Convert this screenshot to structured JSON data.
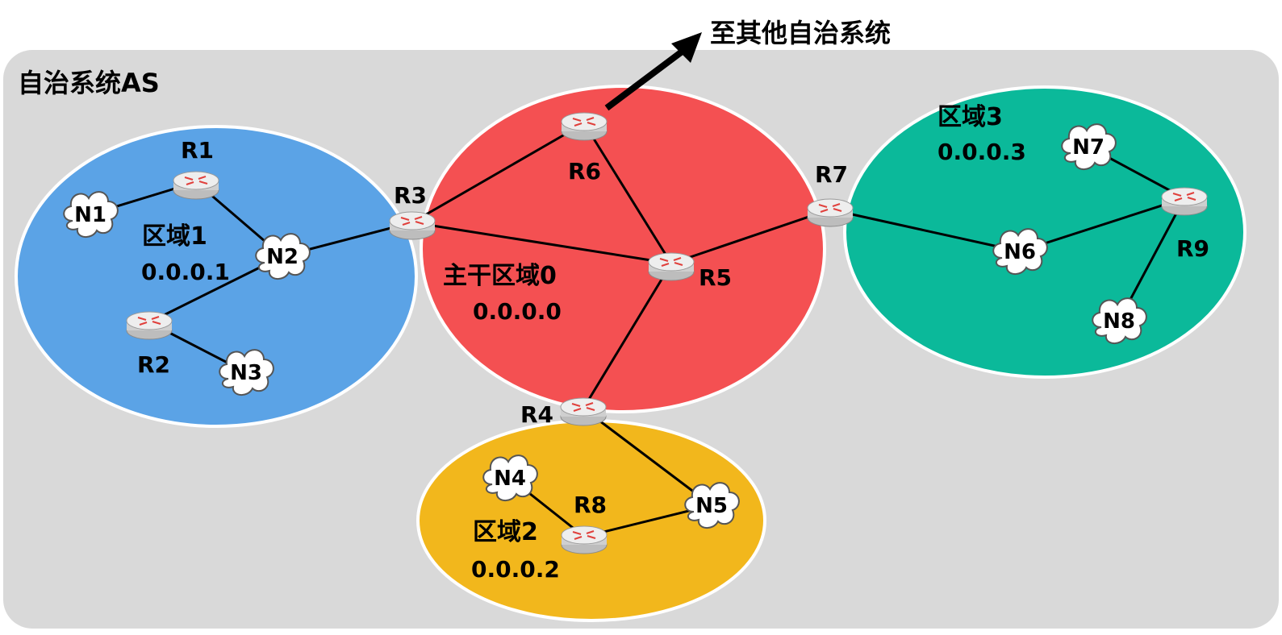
{
  "as_box": {
    "label": "自治系统AS"
  },
  "external": {
    "label": "至其他自治系统"
  },
  "colors": {
    "background": "#d9d9d9",
    "area1": "#5ba3e6",
    "area0": "#f45052",
    "area3": "#0bb99a",
    "area2": "#f2b71c",
    "router_body": "#e8e8e8"
  },
  "areas": [
    {
      "key": "area1",
      "name": "区域1",
      "id": "0.0.0.1"
    },
    {
      "key": "area0",
      "name": "主干区域0",
      "id": "0.0.0.0"
    },
    {
      "key": "area3",
      "name": "区域3",
      "id": "0.0.0.3"
    },
    {
      "key": "area2",
      "name": "区域2",
      "id": "0.0.0.2"
    }
  ],
  "routers": [
    "R1",
    "R2",
    "R3",
    "R4",
    "R5",
    "R6",
    "R7",
    "R8",
    "R9"
  ],
  "networks": [
    "N1",
    "N2",
    "N3",
    "N4",
    "N5",
    "N6",
    "N7",
    "N8"
  ],
  "links": [
    [
      "N1",
      "R1"
    ],
    [
      "R1",
      "N2"
    ],
    [
      "N2",
      "R2"
    ],
    [
      "R2",
      "N3"
    ],
    [
      "N2",
      "R3"
    ],
    [
      "R3",
      "R6"
    ],
    [
      "R3",
      "R5"
    ],
    [
      "R6",
      "R5"
    ],
    [
      "R5",
      "R7"
    ],
    [
      "R5",
      "R4"
    ],
    [
      "R7",
      "N6"
    ],
    [
      "N6",
      "R9"
    ],
    [
      "R9",
      "N7"
    ],
    [
      "R9",
      "N8"
    ],
    [
      "R4",
      "N5"
    ],
    [
      "N5",
      "R8"
    ],
    [
      "R8",
      "N4"
    ]
  ]
}
